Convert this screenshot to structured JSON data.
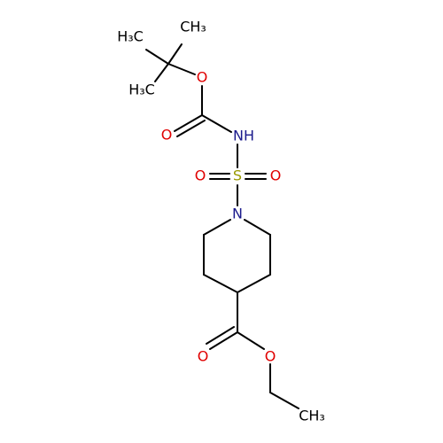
{
  "molecule": {
    "atoms": [
      {
        "label": "CH₃",
        "element": "C"
      },
      {
        "label": "H₃C",
        "element": "C"
      },
      {
        "label": "H₃C",
        "element": "C"
      },
      {
        "label": "O",
        "element": "O"
      },
      {
        "label": "O",
        "element": "O"
      },
      {
        "label": "NH",
        "element": "N"
      },
      {
        "label": "S",
        "element": "S"
      },
      {
        "label": "O",
        "element": "O"
      },
      {
        "label": "O",
        "element": "O"
      },
      {
        "label": "N",
        "element": "N"
      },
      {
        "label": "O",
        "element": "O"
      },
      {
        "label": "O",
        "element": "O"
      },
      {
        "label": "CH₃",
        "element": "C"
      }
    ]
  }
}
